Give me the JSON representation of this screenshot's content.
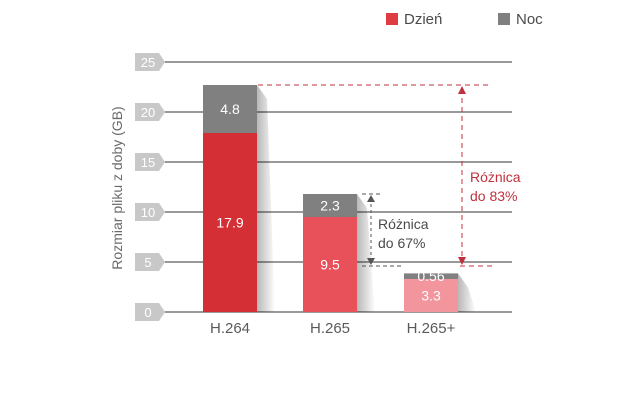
{
  "chart_data": {
    "type": "bar",
    "stacked": true,
    "ylabel": "Rozmiar pliku z doby (GB)",
    "ylim": [
      0,
      25
    ],
    "yticks": [
      0,
      5,
      10,
      15,
      20,
      25
    ],
    "grid": true,
    "legend_position": "top-right",
    "categories": [
      "H.264",
      "H.265",
      "H.265+"
    ],
    "series": [
      {
        "name": "Dzień",
        "values": [
          17.9,
          9.5,
          3.3
        ],
        "value_labels": [
          "17.9",
          "9.5",
          "3.3"
        ]
      },
      {
        "name": "Noc",
        "values": [
          4.8,
          2.3,
          0.56
        ],
        "value_labels": [
          "4.8",
          "2.3",
          "0.56"
        ]
      }
    ],
    "annotations": [
      {
        "text_line1": "Różnica",
        "text_line2": "do 67%",
        "from": 11.8,
        "to": 4.6,
        "color": "#4a4a4a"
      },
      {
        "text_line1": "Różnica",
        "text_line2": "do 83%",
        "from": 22.7,
        "to": 4.6,
        "color": "#c0313c"
      }
    ]
  },
  "colors": {
    "day_bars": [
      "#d32f35",
      "#e8505a",
      "#f2959c"
    ],
    "night": "#808080",
    "legend_day": "#e03a42",
    "legend_night": "#808080",
    "grid": "#333333",
    "tick_bg": "#c8c8c8"
  }
}
